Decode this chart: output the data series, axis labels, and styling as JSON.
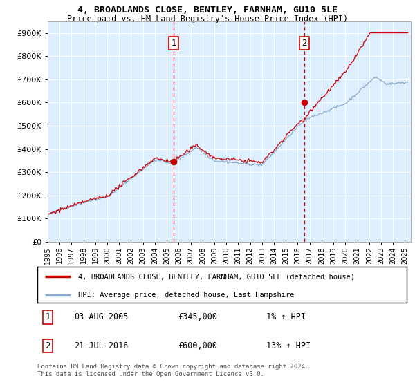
{
  "title1": "4, BROADLANDS CLOSE, BENTLEY, FARNHAM, GU10 5LE",
  "title2": "Price paid vs. HM Land Registry's House Price Index (HPI)",
  "ylabel_ticks": [
    "£0",
    "£100K",
    "£200K",
    "£300K",
    "£400K",
    "£500K",
    "£600K",
    "£700K",
    "£800K",
    "£900K"
  ],
  "ytick_values": [
    0,
    100000,
    200000,
    300000,
    400000,
    500000,
    600000,
    700000,
    800000,
    900000
  ],
  "ylim": [
    0,
    950000
  ],
  "xlim_start": 1995.0,
  "xlim_end": 2025.5,
  "red_line_color": "#cc0000",
  "blue_line_color": "#88aacc",
  "bg_color": "#ddeeff",
  "sale1_x": 2005.585,
  "sale1_y": 345000,
  "sale2_x": 2016.548,
  "sale2_y": 600000,
  "legend_label1": "4, BROADLANDS CLOSE, BENTLEY, FARNHAM, GU10 5LE (detached house)",
  "legend_label2": "HPI: Average price, detached house, East Hampshire",
  "table_rows": [
    [
      "1",
      "03-AUG-2005",
      "£345,000",
      "1% ↑ HPI"
    ],
    [
      "2",
      "21-JUL-2016",
      "£600,000",
      "13% ↑ HPI"
    ]
  ],
  "footnote": "Contains HM Land Registry data © Crown copyright and database right 2024.\nThis data is licensed under the Open Government Licence v3.0.",
  "xtick_years": [
    1995,
    1996,
    1997,
    1998,
    1999,
    2000,
    2001,
    2002,
    2003,
    2004,
    2005,
    2006,
    2007,
    2008,
    2009,
    2010,
    2011,
    2012,
    2013,
    2014,
    2015,
    2016,
    2017,
    2018,
    2019,
    2020,
    2021,
    2022,
    2023,
    2024,
    2025
  ]
}
